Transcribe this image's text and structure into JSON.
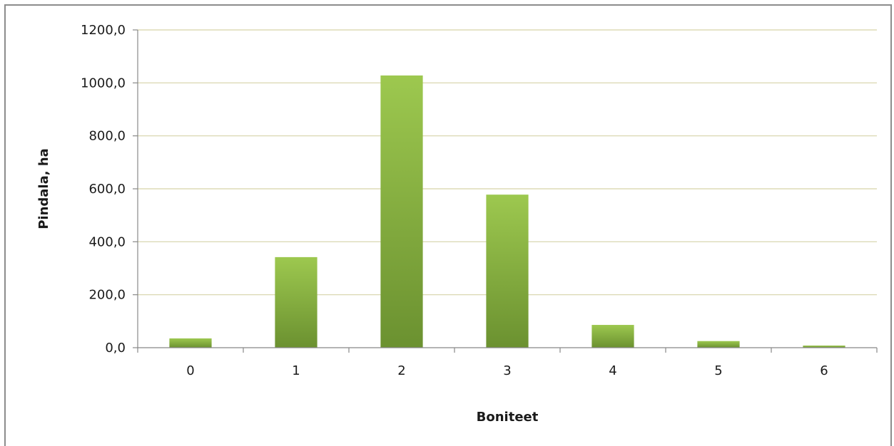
{
  "chart_data": {
    "type": "bar",
    "title": "",
    "xlabel": "Boniteet",
    "ylabel": "Pindala, ha",
    "categories": [
      "0",
      "1",
      "2",
      "3",
      "4",
      "5",
      "6"
    ],
    "values": [
      35,
      342,
      1028,
      578,
      86,
      25,
      8
    ],
    "ylim": [
      0,
      1200
    ],
    "yticks": [
      0,
      200,
      400,
      600,
      800,
      1000,
      1200
    ],
    "ytick_labels": [
      "0,0",
      "200,0",
      "400,0",
      "600,0",
      "800,0",
      "1000,0",
      "1200,0"
    ],
    "grid": true,
    "legend": "none",
    "colors": {
      "bar_top": "#9dc84f",
      "bar_bottom": "#6b9130",
      "grid": "#d6d3a8",
      "axis": "#888888"
    }
  }
}
